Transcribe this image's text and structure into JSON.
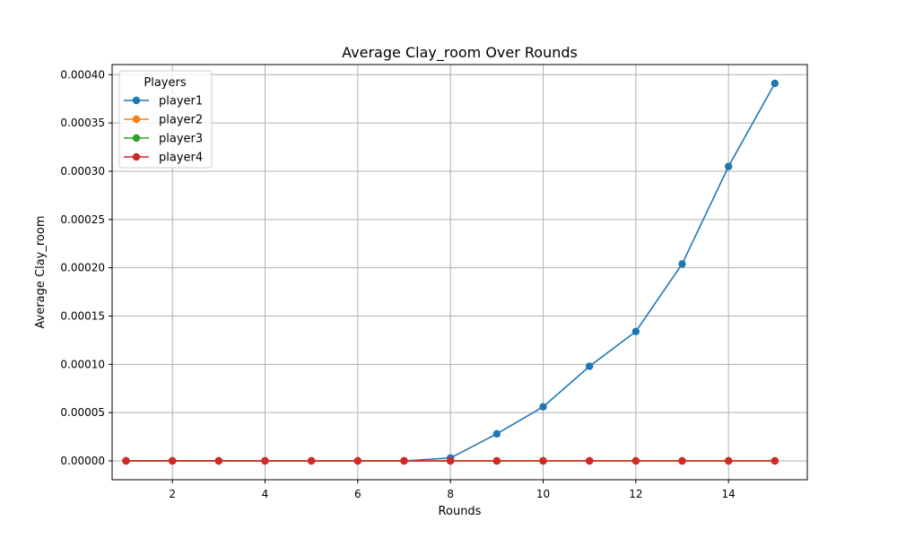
{
  "chart_data": {
    "type": "line",
    "title": "Average Clay_room Over Rounds",
    "xlabel": "Rounds",
    "ylabel": "Average Clay_room",
    "x": [
      1,
      2,
      3,
      4,
      5,
      6,
      7,
      8,
      9,
      10,
      11,
      12,
      13,
      14,
      15
    ],
    "xlim": [
      0.7,
      15.7
    ],
    "ylim": [
      -1.95e-05,
      0.0004105
    ],
    "xticks": [
      2,
      4,
      6,
      8,
      10,
      12,
      14
    ],
    "xtick_labels": [
      "2",
      "4",
      "6",
      "8",
      "10",
      "12",
      "14"
    ],
    "yticks": [
      0,
      5e-05,
      0.0001,
      0.00015,
      0.0002,
      0.00025,
      0.0003,
      0.00035,
      0.0004
    ],
    "ytick_labels": [
      "0.00000",
      "0.00005",
      "0.00010",
      "0.00015",
      "0.00020",
      "0.00025",
      "0.00030",
      "0.00035",
      "0.00040"
    ],
    "grid": true,
    "legend": {
      "title": "Players",
      "position": "top-left"
    },
    "series": [
      {
        "name": "player1",
        "color": "#1f77b4",
        "values": [
          0,
          0,
          0,
          0,
          0,
          0,
          0,
          3e-06,
          2.8e-05,
          5.6e-05,
          9.8e-05,
          0.000134,
          0.000204,
          0.000305,
          0.000391
        ]
      },
      {
        "name": "player2",
        "color": "#ff7f0e",
        "values": [
          0,
          0,
          0,
          0,
          0,
          0,
          0,
          0,
          0,
          0,
          0,
          0,
          0,
          0,
          0
        ]
      },
      {
        "name": "player3",
        "color": "#2ca02c",
        "values": [
          0,
          0,
          0,
          0,
          0,
          0,
          0,
          0,
          0,
          0,
          0,
          0,
          0,
          0,
          0
        ]
      },
      {
        "name": "player4",
        "color": "#d62728",
        "values": [
          0,
          0,
          0,
          0,
          0,
          0,
          0,
          0,
          0,
          0,
          0,
          0,
          0,
          0,
          0
        ]
      }
    ]
  }
}
